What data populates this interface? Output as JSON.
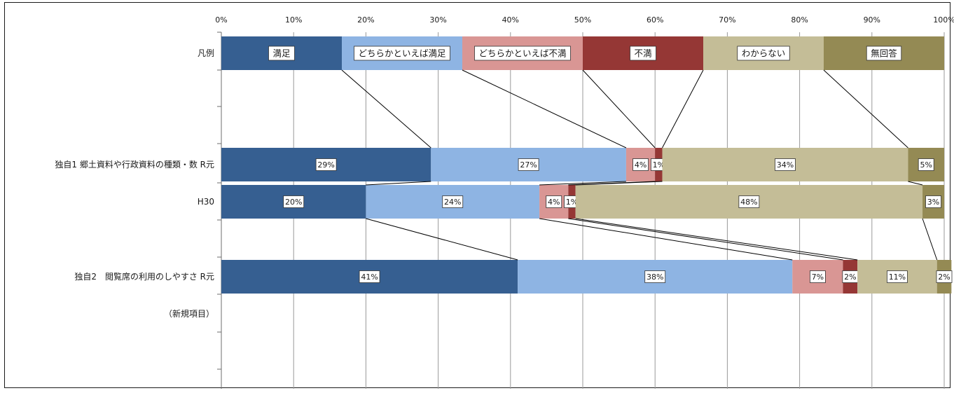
{
  "chart_data": {
    "type": "bar",
    "orientation": "horizontal",
    "stacked": "percent",
    "xlim": [
      0,
      100
    ],
    "x_ticks": [
      "0%",
      "10%",
      "20%",
      "30%",
      "40%",
      "50%",
      "60%",
      "70%",
      "80%",
      "90%",
      "100%"
    ],
    "grid": true,
    "legend_row_label": "凡例",
    "categories": [
      "独自1 郷土資料や行政資料の種類・数 R元",
      "H30",
      "独自2　閲覧席の利用のしやすさ R元"
    ],
    "note": "（新規項目）",
    "series": [
      {
        "name": "満足",
        "color": "#365f91",
        "values": [
          29,
          20,
          41
        ]
      },
      {
        "name": "どちらかといえば満足",
        "color": "#8eb4e3",
        "values": [
          27,
          24,
          38
        ]
      },
      {
        "name": "どちらかといえば不満",
        "color": "#d99694",
        "values": [
          4,
          4,
          7
        ]
      },
      {
        "name": "不満",
        "color": "#953735",
        "values": [
          1,
          1,
          2
        ]
      },
      {
        "name": "わからない",
        "color": "#c4bd97",
        "values": [
          34,
          48,
          11
        ]
      },
      {
        "name": "無回答",
        "color": "#948a54",
        "values": [
          5,
          3,
          2
        ]
      }
    ],
    "data_labels": [
      [
        "29%",
        "27%",
        "4%",
        "1%",
        "34%",
        "5%"
      ],
      [
        "20%",
        "24%",
        "4%",
        "1%",
        "48%",
        "3%"
      ],
      [
        "41%",
        "38%",
        "7%",
        "2%",
        "11%",
        "2%"
      ]
    ],
    "connector_lines": true
  }
}
